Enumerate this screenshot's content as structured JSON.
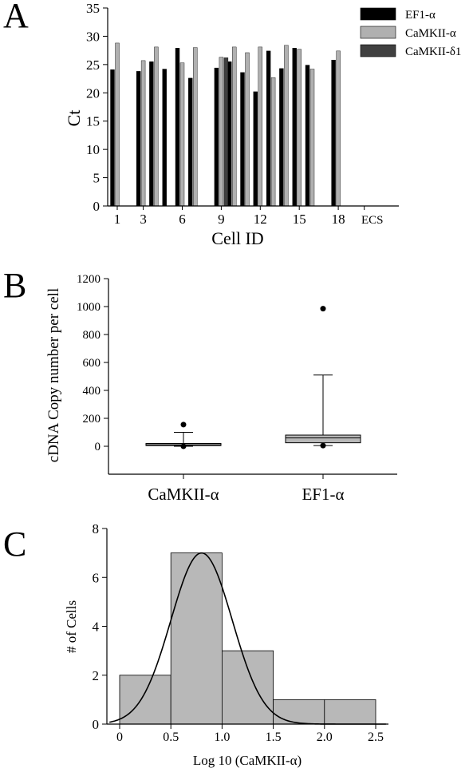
{
  "colors": {
    "ef1": "#000000",
    "camkii_alpha": "#b0b0b0",
    "camkii_delta1": "#404040",
    "box_fill": "#b8b8b8",
    "hist_fill": "#b8b8b8"
  },
  "chart_data": [
    {
      "panel": "A",
      "type": "bar",
      "xlabel": "Cell ID",
      "ylabel": "Ct",
      "ylim": [
        0,
        35
      ],
      "yticks": [
        "0",
        "5",
        "10",
        "15",
        "20",
        "25",
        "30",
        "35"
      ],
      "x_tick_labels": [
        {
          "cell": 1,
          "label": "1"
        },
        {
          "cell": 3,
          "label": "3"
        },
        {
          "cell": 6,
          "label": "6"
        },
        {
          "cell": 9,
          "label": "9"
        },
        {
          "cell": 12,
          "label": "12"
        },
        {
          "cell": 15,
          "label": "15"
        },
        {
          "cell": 18,
          "label": "18"
        },
        {
          "cell": 20,
          "label": "ECS"
        }
      ],
      "cells": [
        1,
        2,
        3,
        4,
        5,
        6,
        7,
        8,
        9,
        10,
        11,
        12,
        13,
        14,
        15,
        16,
        17,
        18,
        19,
        20
      ],
      "legend_position": "top-right",
      "series": [
        {
          "name": "EF1-α",
          "color": "#000000",
          "values": [
            24.1,
            null,
            23.8,
            25.5,
            24.2,
            27.9,
            22.6,
            null,
            24.4,
            25.5,
            23.6,
            20.2,
            27.4,
            24.3,
            27.9,
            24.9,
            null,
            25.8,
            null,
            null
          ]
        },
        {
          "name": "CaMKII-α",
          "color": "#b0b0b0",
          "values": [
            28.8,
            null,
            25.7,
            28.1,
            null,
            25.3,
            28.0,
            null,
            26.3,
            28.1,
            27.1,
            28.1,
            22.7,
            28.4,
            27.7,
            24.2,
            null,
            27.4,
            null,
            null
          ]
        },
        {
          "name": "CaMKII-δ1",
          "color": "#404040",
          "values": [
            null,
            null,
            null,
            null,
            null,
            null,
            null,
            null,
            26.2,
            null,
            null,
            null,
            null,
            null,
            null,
            null,
            null,
            null,
            null,
            null
          ]
        }
      ]
    },
    {
      "panel": "B",
      "type": "box",
      "ylabel": "cDNA Copy number per cell",
      "ylim": [
        -200,
        1200
      ],
      "yticks": [
        "0",
        "200",
        "400",
        "600",
        "800",
        "1000",
        "1200"
      ],
      "boxes": [
        {
          "category": "CaMKII-α",
          "whisker_low": 0,
          "q1": 5,
          "median": 10,
          "q3": 20,
          "whisker_high": 100,
          "outliers": [
            155,
            0
          ]
        },
        {
          "category": "EF1-α",
          "whisker_low": 5,
          "q1": 25,
          "median": 60,
          "q3": 80,
          "whisker_high": 510,
          "outliers": [
            985,
            5
          ]
        }
      ]
    },
    {
      "panel": "C",
      "type": "histogram",
      "xlabel": "Log 10 (CaMKII-α)",
      "ylabel": "# of Cells",
      "xlim": [
        -0.1,
        2.6
      ],
      "ylim": [
        0,
        8
      ],
      "xticks": [
        "0",
        "0.5",
        "1.0",
        "1.5",
        "2.0",
        "2.5"
      ],
      "yticks": [
        "0",
        "2",
        "4",
        "6",
        "8"
      ],
      "bins": [
        {
          "from": 0.0,
          "to": 0.5,
          "count": 2
        },
        {
          "from": 0.5,
          "to": 1.0,
          "count": 7
        },
        {
          "from": 1.0,
          "to": 1.5,
          "count": 3
        },
        {
          "from": 1.5,
          "to": 2.0,
          "count": 1
        },
        {
          "from": 2.0,
          "to": 2.5,
          "count": 1
        }
      ],
      "normal_fit": {
        "mean": 0.8,
        "sd": 0.3,
        "peak": 7.0
      }
    }
  ],
  "panel_labels": {
    "a": "A",
    "b": "B",
    "c": "C"
  }
}
